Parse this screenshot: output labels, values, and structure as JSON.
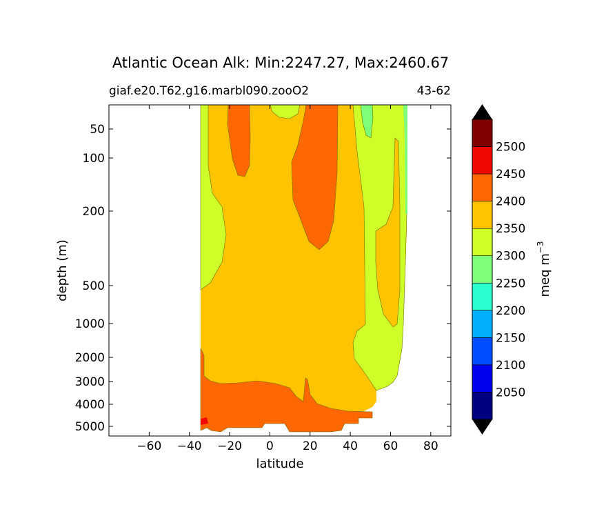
{
  "chart_data": {
    "type": "contourf",
    "title": "Atlantic Ocean Alk: Min:2247.27, Max:2460.67",
    "subtitle_left": "giaf.e20.T62.g16.marbl090.zooO2",
    "subtitle_right": "43-62",
    "xlabel": "latitude",
    "ylabel": "depth (m)",
    "xlim": [
      -80,
      90
    ],
    "x_ticks": [
      -60,
      -40,
      -20,
      0,
      20,
      40,
      60,
      80
    ],
    "x_tick_labels": [
      "−60",
      "−40",
      "−20",
      "0",
      "20",
      "40",
      "60",
      "80"
    ],
    "y_ticks": [
      50,
      100,
      200,
      500,
      1000,
      2000,
      3000,
      4000,
      5000
    ],
    "y_tick_labels": [
      "50",
      "100",
      "200",
      "500",
      "1000",
      "2000",
      "3000",
      "4000",
      "5000"
    ],
    "y_axis": "inverted, stretched depth scale",
    "colorbar": {
      "label": "meq m⁻³",
      "label_base": "meq m",
      "label_exp": "−3",
      "levels": [
        2000,
        2050,
        2100,
        2150,
        2200,
        2250,
        2300,
        2350,
        2400,
        2450,
        2500,
        2550
      ],
      "tick_values": [
        2050,
        2100,
        2150,
        2200,
        2250,
        2300,
        2350,
        2400,
        2450,
        2500
      ],
      "tick_labels": [
        "2050",
        "2100",
        "2150",
        "2200",
        "2250",
        "2300",
        "2350",
        "2400",
        "2450",
        "2500"
      ],
      "colors": [
        "#000080",
        "#0000f1",
        "#004dff",
        "#00b0ff",
        "#29ffce",
        "#7dff7a",
        "#ceff29",
        "#ffc400",
        "#ff6800",
        "#f10800",
        "#800000"
      ],
      "extend": "both"
    }
  }
}
